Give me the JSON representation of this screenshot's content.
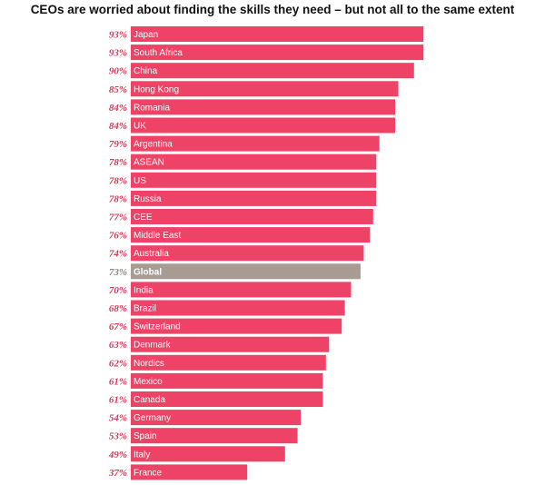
{
  "title": "CEOs are worried about finding the skills they need – but not all to the same extent",
  "colors": {
    "bar": "#ee4266",
    "highlight_bar": "#a89b94",
    "value_text": "#d63a5a",
    "highlight_value_text": "#8a8580"
  },
  "chart_data": {
    "type": "bar",
    "orientation": "horizontal",
    "value_format": "percent",
    "highlight": "Global",
    "categories": [
      "Japan",
      "South Africa",
      "China",
      "Hong Kong",
      "Romania",
      "UK",
      "Argentina",
      "ASEAN",
      "US",
      "Russia",
      "CEE",
      "Middle East",
      "Australia",
      "Global",
      "India",
      "Brazil",
      "Switzerland",
      "Denmark",
      "Nordics",
      "Mexico",
      "Canada",
      "Germany",
      "Spain",
      "Italy",
      "France"
    ],
    "values": [
      93,
      93,
      90,
      85,
      84,
      84,
      79,
      78,
      78,
      78,
      77,
      76,
      74,
      73,
      70,
      68,
      67,
      63,
      62,
      61,
      61,
      54,
      53,
      49,
      37
    ],
    "value_labels": [
      "93%",
      "93%",
      "90%",
      "85%",
      "84%",
      "84%",
      "79%",
      "78%",
      "78%",
      "78%",
      "77%",
      "76%",
      "74%",
      "73%",
      "70%",
      "68%",
      "67%",
      "63%",
      "62%",
      "61%",
      "61%",
      "54%",
      "53%",
      "49%",
      "37%"
    ],
    "xlim": [
      0,
      100
    ],
    "grid": false,
    "legend": "none"
  }
}
